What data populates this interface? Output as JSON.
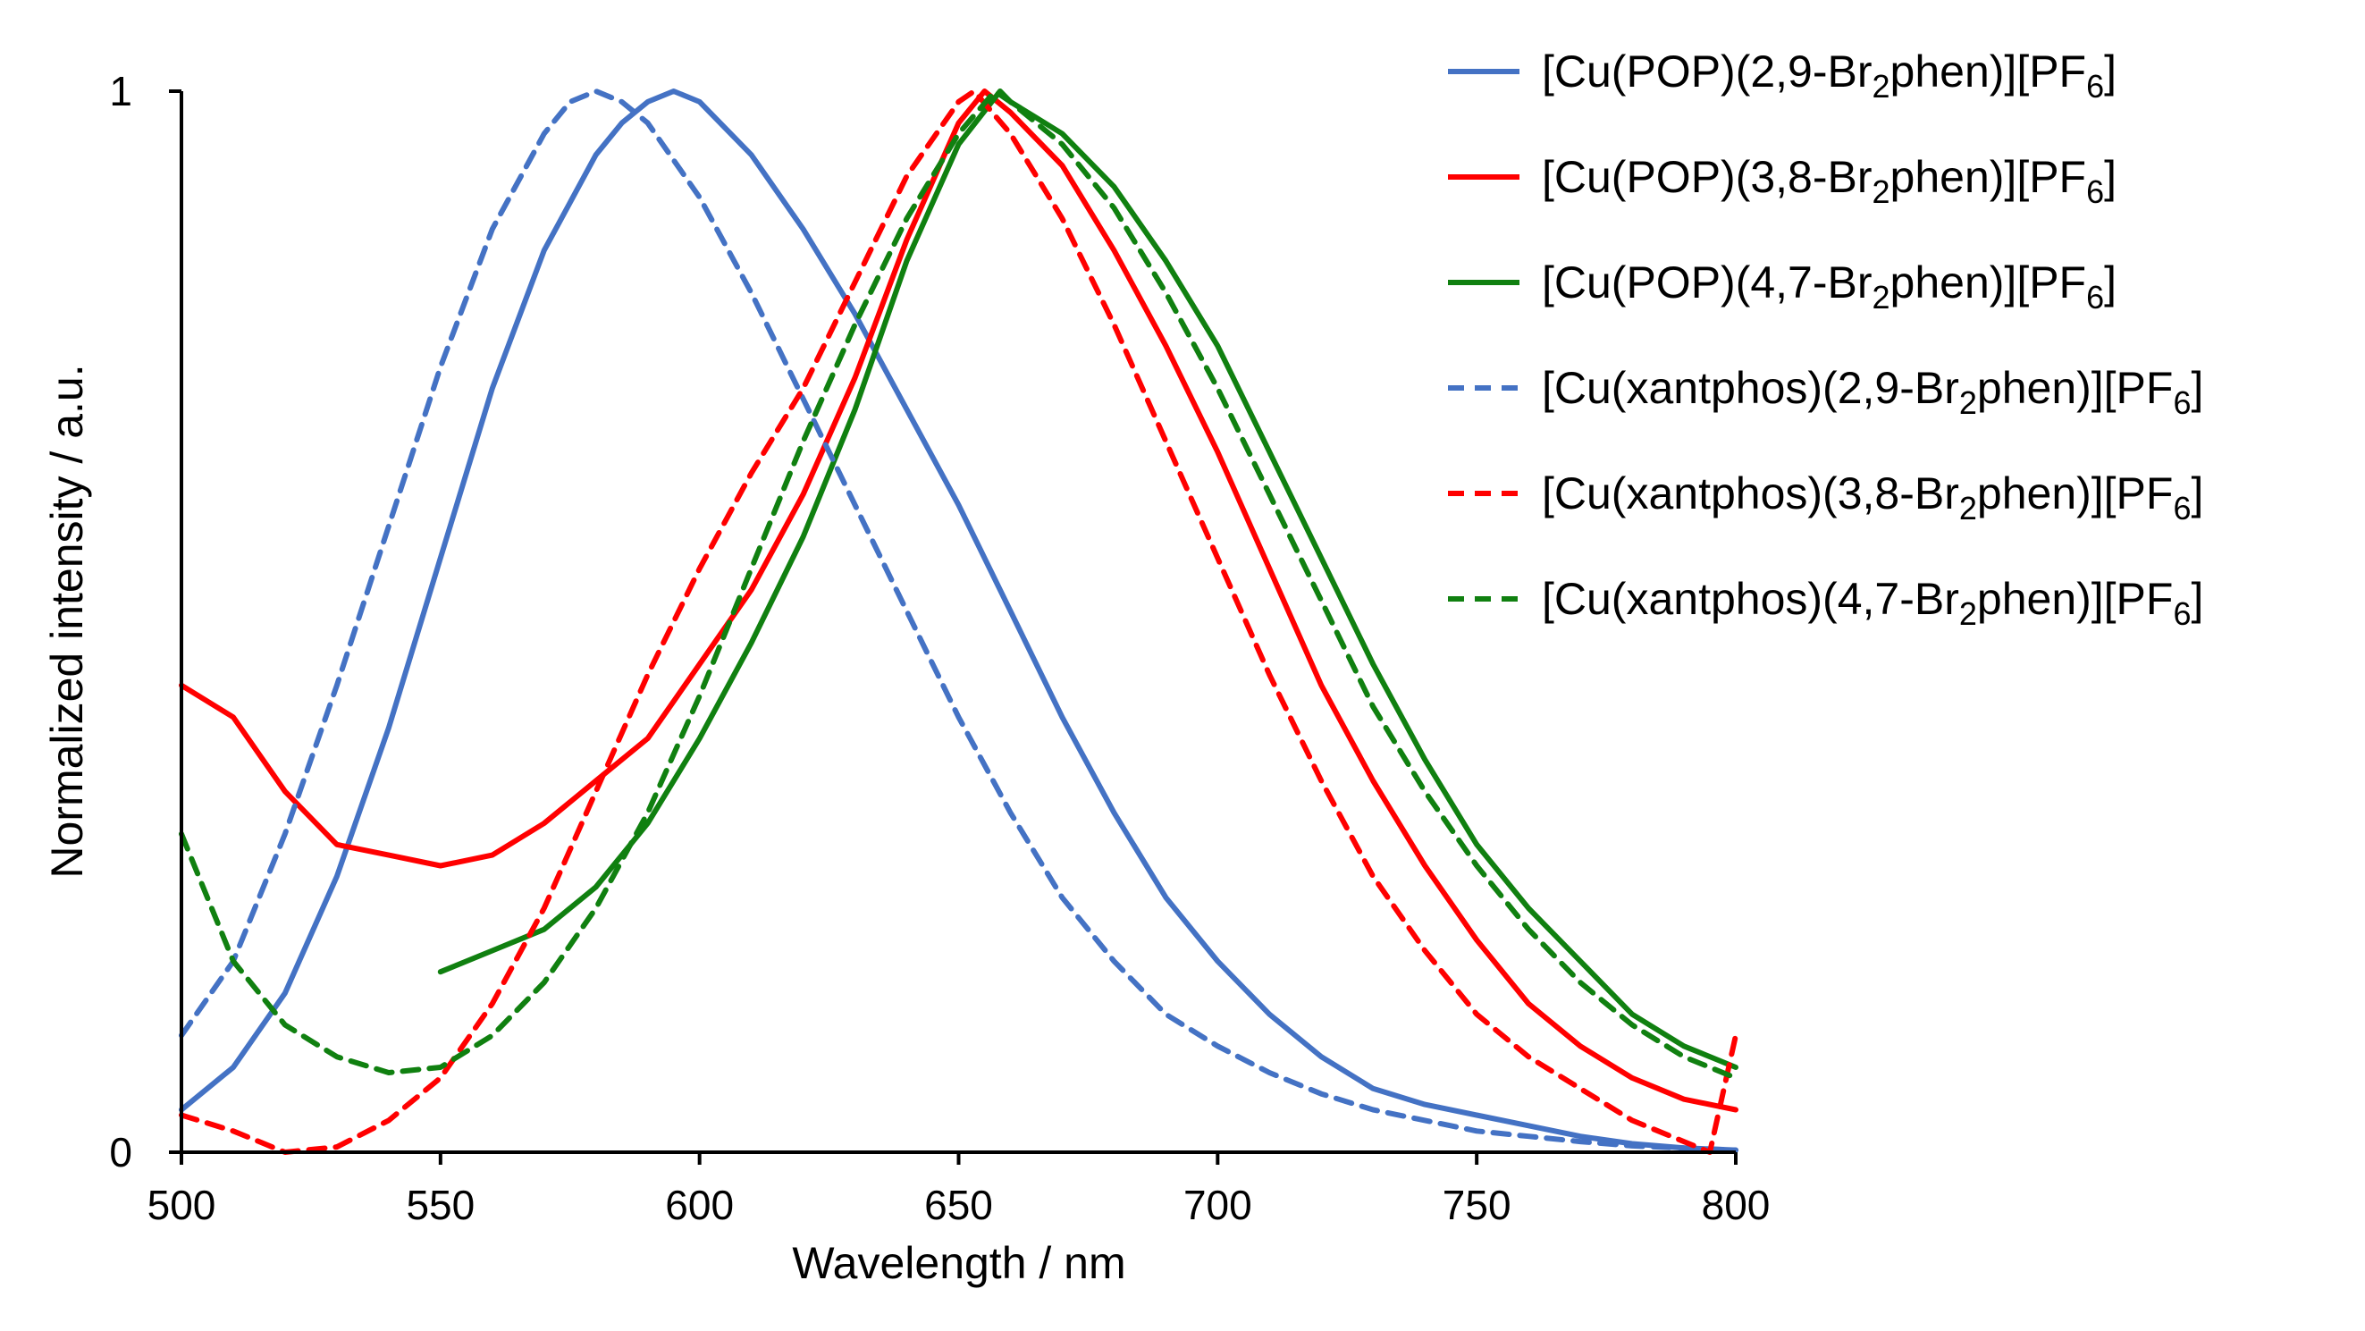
{
  "chart_data": {
    "type": "line",
    "title": "",
    "xlabel": "Wavelength / nm",
    "ylabel": "Normalized intensity / a.u.",
    "xlim": [
      500,
      800
    ],
    "ylim": [
      0,
      1
    ],
    "xticks": [
      500,
      550,
      600,
      650,
      700,
      750,
      800
    ],
    "xtick_labels": [
      "500",
      "550",
      "600",
      "650",
      "700",
      "750",
      "800"
    ],
    "yticks": [
      0,
      1
    ],
    "ytick_labels": [
      "0",
      "1"
    ],
    "grid": false,
    "legend_position": "top-right",
    "series": [
      {
        "name": "[Cu(POP)(2,9-Br2phen)][PF6]",
        "legend": {
          "prefix": "[Cu(POP)(2,9-Br",
          "sub1": "2",
          "mid": "phen)][PF",
          "sub2": "6",
          "suffix": "]"
        },
        "color": "#4472C4",
        "dash": "solid",
        "x": [
          500,
          510,
          520,
          530,
          540,
          550,
          560,
          570,
          580,
          585,
          590,
          595,
          600,
          610,
          620,
          630,
          640,
          650,
          660,
          670,
          680,
          690,
          700,
          710,
          720,
          730,
          740,
          750,
          760,
          770,
          780,
          790,
          800
        ],
        "y": [
          0.04,
          0.08,
          0.15,
          0.26,
          0.4,
          0.56,
          0.72,
          0.85,
          0.94,
          0.97,
          0.99,
          1.0,
          0.99,
          0.94,
          0.87,
          0.79,
          0.7,
          0.61,
          0.51,
          0.41,
          0.32,
          0.24,
          0.18,
          0.13,
          0.09,
          0.06,
          0.045,
          0.035,
          0.025,
          0.015,
          0.008,
          0.004,
          0.002
        ]
      },
      {
        "name": "[Cu(POP)(3,8-Br2phen)][PF6]",
        "legend": {
          "prefix": "[Cu(POP)(3,8-Br",
          "sub1": "2",
          "mid": "phen)][PF",
          "sub2": "6",
          "suffix": "]"
        },
        "color": "#FF0000",
        "dash": "solid",
        "x": [
          500,
          510,
          520,
          530,
          540,
          550,
          560,
          570,
          580,
          590,
          600,
          610,
          620,
          630,
          640,
          650,
          655,
          660,
          670,
          680,
          690,
          700,
          710,
          720,
          730,
          740,
          750,
          760,
          770,
          780,
          790,
          800
        ],
        "y": [
          0.44,
          0.41,
          0.34,
          0.29,
          0.28,
          0.27,
          0.28,
          0.31,
          0.35,
          0.39,
          0.46,
          0.53,
          0.62,
          0.73,
          0.86,
          0.97,
          1.0,
          0.98,
          0.93,
          0.85,
          0.76,
          0.66,
          0.55,
          0.44,
          0.35,
          0.27,
          0.2,
          0.14,
          0.1,
          0.07,
          0.05,
          0.04
        ]
      },
      {
        "name": "[Cu(POP)(4,7-Br2phen)][PF6]",
        "legend": {
          "prefix": "[Cu(POP)(4,7-Br",
          "sub1": "2",
          "mid": "phen)][PF",
          "sub2": "6",
          "suffix": "]"
        },
        "color": "#108010",
        "dash": "solid",
        "x": [
          550,
          560,
          570,
          580,
          590,
          600,
          610,
          620,
          630,
          640,
          650,
          658,
          660,
          670,
          680,
          690,
          700,
          710,
          720,
          730,
          740,
          750,
          760,
          770,
          780,
          790,
          800
        ],
        "y": [
          0.17,
          0.19,
          0.21,
          0.25,
          0.31,
          0.39,
          0.48,
          0.58,
          0.7,
          0.84,
          0.95,
          1.0,
          0.99,
          0.96,
          0.91,
          0.84,
          0.76,
          0.66,
          0.56,
          0.46,
          0.37,
          0.29,
          0.23,
          0.18,
          0.13,
          0.1,
          0.08
        ]
      },
      {
        "name": "[Cu(xantphos)(2,9-Br2phen)][PF6]",
        "legend": {
          "prefix": "[Cu(xantphos)(2,9-Br",
          "sub1": "2",
          "mid": "phen)][PF",
          "sub2": "6",
          "suffix": "]"
        },
        "color": "#4472C4",
        "dash": "dashed",
        "x": [
          500,
          510,
          520,
          530,
          540,
          550,
          560,
          570,
          575,
          580,
          585,
          590,
          600,
          610,
          620,
          630,
          640,
          650,
          660,
          670,
          680,
          690,
          700,
          710,
          720,
          730,
          740,
          750,
          760,
          770,
          780,
          790,
          800
        ],
        "y": [
          0.11,
          0.18,
          0.3,
          0.44,
          0.59,
          0.74,
          0.87,
          0.96,
          0.99,
          1.0,
          0.99,
          0.97,
          0.9,
          0.81,
          0.71,
          0.61,
          0.51,
          0.41,
          0.32,
          0.24,
          0.18,
          0.13,
          0.1,
          0.075,
          0.055,
          0.04,
          0.03,
          0.02,
          0.015,
          0.01,
          0.006,
          0.004,
          0.002
        ]
      },
      {
        "name": "[Cu(xantphos)(3,8-Br2phen)][PF6]",
        "legend": {
          "prefix": "[Cu(xantphos)(3,8-Br",
          "sub1": "2",
          "mid": "phen)][PF",
          "sub2": "6",
          "suffix": "]"
        },
        "color": "#FF0000",
        "dash": "dashed",
        "x": [
          500,
          510,
          520,
          530,
          540,
          550,
          560,
          570,
          580,
          590,
          600,
          610,
          620,
          630,
          640,
          650,
          653,
          660,
          670,
          680,
          690,
          700,
          710,
          720,
          730,
          740,
          750,
          760,
          770,
          780,
          790,
          795,
          800
        ],
        "y": [
          0.035,
          0.02,
          0.0,
          0.005,
          0.03,
          0.07,
          0.14,
          0.23,
          0.34,
          0.45,
          0.55,
          0.64,
          0.72,
          0.82,
          0.92,
          0.99,
          1.0,
          0.96,
          0.88,
          0.78,
          0.67,
          0.56,
          0.45,
          0.35,
          0.26,
          0.19,
          0.13,
          0.09,
          0.06,
          0.03,
          0.01,
          0.0,
          0.11
        ]
      },
      {
        "name": "[Cu(xantphos)(4,7-Br2phen)][PF6]",
        "legend": {
          "prefix": "[Cu(xantphos)(4,7-Br",
          "sub1": "2",
          "mid": "phen)][PF",
          "sub2": "6",
          "suffix": "]"
        },
        "color": "#108010",
        "dash": "dashed",
        "x": [
          500,
          510,
          520,
          530,
          540,
          550,
          560,
          570,
          580,
          590,
          600,
          610,
          620,
          630,
          640,
          650,
          657,
          660,
          670,
          680,
          690,
          700,
          710,
          720,
          730,
          740,
          750,
          760,
          770,
          780,
          790,
          800
        ],
        "y": [
          0.3,
          0.18,
          0.12,
          0.09,
          0.075,
          0.08,
          0.11,
          0.16,
          0.23,
          0.32,
          0.43,
          0.55,
          0.67,
          0.78,
          0.88,
          0.96,
          1.0,
          0.99,
          0.95,
          0.89,
          0.81,
          0.72,
          0.62,
          0.52,
          0.42,
          0.34,
          0.27,
          0.21,
          0.16,
          0.12,
          0.09,
          0.07
        ]
      }
    ]
  }
}
